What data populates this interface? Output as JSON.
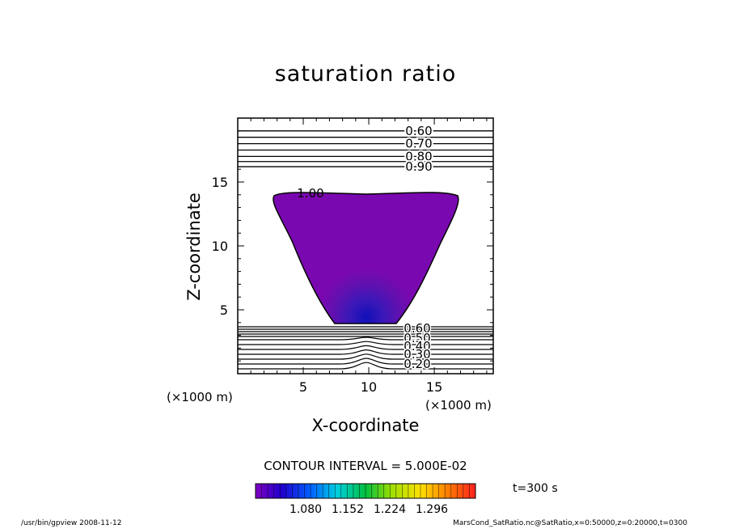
{
  "chart_data": {
    "type": "contour",
    "title": "saturation ratio",
    "xlabel": "X-coordinate",
    "ylabel": "Z-coordinate",
    "x_unit": "(×1000 m)",
    "y_unit": "(×1000 m)",
    "xlim": [
      0,
      19.5
    ],
    "ylim": [
      0,
      20
    ],
    "x_ticks": [
      5,
      10,
      15
    ],
    "y_ticks": [
      5,
      10,
      15
    ],
    "contour_interval": "CONTOUR INTERVAL = 5.000E-02",
    "time_label": "t=300 s",
    "upper_contours": [
      {
        "label": "0.60",
        "z": 19.0
      },
      {
        "label": "0.70",
        "z": 18.0
      },
      {
        "label": "0.80",
        "z": 17.0
      },
      {
        "label": "0.90",
        "z": 16.2
      }
    ],
    "unlabeled_upper_contours": [
      18.5,
      17.5,
      16.6
    ],
    "saturated_region_label": "1.00",
    "lower_contour_labels": [
      "0.60",
      "0.50",
      "0.40",
      "0.30",
      "0.20"
    ],
    "colorbar_ticks": [
      "1.080",
      "1.152",
      "1.224",
      "1.296"
    ]
  },
  "footer": {
    "left": "/usr/bin/gpview   2008-11-12",
    "right": "MarsCond_SatRatio.nc@SatRatio,x=0:50000,z=0:20000,t=0300"
  }
}
